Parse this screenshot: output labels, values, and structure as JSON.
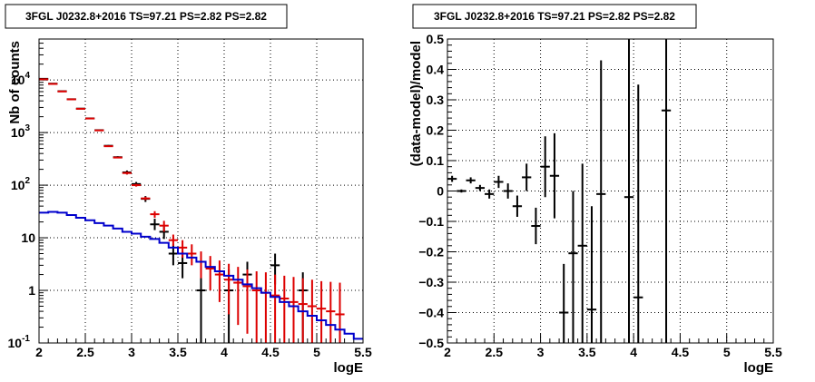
{
  "chart_data": [
    {
      "type": "scatter",
      "title": "3FGL J0232.8+2016 TS=97.21 PS=2.82 PS=2.82",
      "xlabel": "logE",
      "ylabel": "Nb of counts",
      "xlim": [
        2,
        5.5
      ],
      "ylim": [
        0.1,
        60000
      ],
      "yscale": "log",
      "grid": true,
      "x_ticks": [
        "2",
        "2.5",
        "3",
        "3.5",
        "4",
        "4.5",
        "5",
        "5.5"
      ],
      "y_ticks": [
        {
          "value": 0.1,
          "label": "10",
          "exp": "-1"
        },
        {
          "value": 1,
          "label": "1",
          "exp": ""
        },
        {
          "value": 10,
          "label": "10",
          "exp": ""
        },
        {
          "value": 100,
          "label": "10",
          "exp": "2"
        },
        {
          "value": 1000,
          "label": "10",
          "exp": "3"
        },
        {
          "value": 10000,
          "label": "10",
          "exp": "4"
        }
      ],
      "series": [
        {
          "color": "#000000",
          "style": "errorbars",
          "points": [
            {
              "x": 2.05,
              "y": 10500,
              "lo": 10400,
              "hi": 10600
            },
            {
              "x": 2.15,
              "y": 8500,
              "lo": 8400,
              "hi": 8600
            },
            {
              "x": 2.25,
              "y": 6100,
              "lo": 6000,
              "hi": 6200
            },
            {
              "x": 2.35,
              "y": 4300,
              "lo": 4250,
              "hi": 4350
            },
            {
              "x": 2.45,
              "y": 2850,
              "lo": 2800,
              "hi": 2900
            },
            {
              "x": 2.55,
              "y": 1860,
              "lo": 1820,
              "hi": 1900
            },
            {
              "x": 2.65,
              "y": 1110,
              "lo": 1080,
              "hi": 1140
            },
            {
              "x": 2.75,
              "y": 560,
              "lo": 540,
              "hi": 580
            },
            {
              "x": 2.85,
              "y": 340,
              "lo": 325,
              "hi": 355
            },
            {
              "x": 2.95,
              "y": 175,
              "lo": 160,
              "hi": 190
            },
            {
              "x": 3.05,
              "y": 105,
              "lo": 95,
              "hi": 115
            },
            {
              "x": 3.15,
              "y": 55,
              "lo": 48,
              "hi": 62
            },
            {
              "x": 3.25,
              "y": 18,
              "lo": 14,
              "hi": 23
            },
            {
              "x": 3.35,
              "y": 13,
              "lo": 9.5,
              "hi": 17
            },
            {
              "x": 3.45,
              "y": 5,
              "lo": 3,
              "hi": 7.5
            },
            {
              "x": 3.55,
              "y": 3.3,
              "lo": 1.7,
              "hi": 5.5
            },
            {
              "x": 3.75,
              "y": 1,
              "lo": 0.1,
              "hi": 2.5
            },
            {
              "x": 4.05,
              "y": 1,
              "lo": 0.1,
              "hi": 2.5
            },
            {
              "x": 4.25,
              "y": 2,
              "lo": 0.7,
              "hi": 3.5
            },
            {
              "x": 4.55,
              "y": 3,
              "lo": 1.3,
              "hi": 5
            },
            {
              "x": 4.85,
              "y": 1,
              "lo": 0.1,
              "hi": 2.2
            }
          ]
        },
        {
          "color": "#dd0000",
          "style": "errorbars",
          "points": [
            {
              "x": 2.05,
              "y": 10300,
              "lo": 10250,
              "hi": 10350
            },
            {
              "x": 2.15,
              "y": 8400,
              "lo": 8350,
              "hi": 8450
            },
            {
              "x": 2.25,
              "y": 6050,
              "lo": 6000,
              "hi": 6100
            },
            {
              "x": 2.35,
              "y": 4280,
              "lo": 4250,
              "hi": 4310
            },
            {
              "x": 2.45,
              "y": 2830,
              "lo": 2800,
              "hi": 2860
            },
            {
              "x": 2.55,
              "y": 1850,
              "lo": 1830,
              "hi": 1870
            },
            {
              "x": 2.65,
              "y": 1100,
              "lo": 1085,
              "hi": 1115
            },
            {
              "x": 2.75,
              "y": 550,
              "lo": 540,
              "hi": 560
            },
            {
              "x": 2.85,
              "y": 335,
              "lo": 328,
              "hi": 342
            },
            {
              "x": 2.95,
              "y": 170,
              "lo": 160,
              "hi": 180
            },
            {
              "x": 3.05,
              "y": 100,
              "lo": 94,
              "hi": 106
            },
            {
              "x": 3.15,
              "y": 56,
              "lo": 52,
              "hi": 60
            },
            {
              "x": 3.25,
              "y": 28,
              "lo": 24,
              "hi": 32
            },
            {
              "x": 3.35,
              "y": 17,
              "lo": 13,
              "hi": 21
            },
            {
              "x": 3.45,
              "y": 9,
              "lo": 7,
              "hi": 11.5
            },
            {
              "x": 3.55,
              "y": 6.5,
              "lo": 4.2,
              "hi": 9
            },
            {
              "x": 3.65,
              "y": 5,
              "lo": 3,
              "hi": 7.5
            },
            {
              "x": 3.75,
              "y": 3.5,
              "lo": 1.7,
              "hi": 5.5
            },
            {
              "x": 3.85,
              "y": 2.6,
              "lo": 1,
              "hi": 4.5
            },
            {
              "x": 3.95,
              "y": 2,
              "lo": 0.6,
              "hi": 3.7
            },
            {
              "x": 4.05,
              "y": 1.6,
              "lo": 0.35,
              "hi": 3.2
            },
            {
              "x": 4.15,
              "y": 1.4,
              "lo": 0.22,
              "hi": 2.8
            },
            {
              "x": 4.25,
              "y": 1.2,
              "lo": 0.15,
              "hi": 2.5
            },
            {
              "x": 4.35,
              "y": 1,
              "lo": 0.1,
              "hi": 2.3
            },
            {
              "x": 4.45,
              "y": 0.9,
              "lo": 0.1,
              "hi": 2.2
            },
            {
              "x": 4.55,
              "y": 0.8,
              "lo": 0.1,
              "hi": 2
            },
            {
              "x": 4.65,
              "y": 0.7,
              "lo": 0.1,
              "hi": 1.9
            },
            {
              "x": 4.75,
              "y": 0.6,
              "lo": 0.1,
              "hi": 1.8
            },
            {
              "x": 4.85,
              "y": 0.55,
              "lo": 0.1,
              "hi": 1.7
            },
            {
              "x": 4.95,
              "y": 0.5,
              "lo": 0.1,
              "hi": 1.6
            },
            {
              "x": 5.05,
              "y": 0.45,
              "lo": 0.1,
              "hi": 1.5
            },
            {
              "x": 5.15,
              "y": 0.4,
              "lo": 0.1,
              "hi": 1.45
            },
            {
              "x": 5.25,
              "y": 0.35,
              "lo": 0.1,
              "hi": 1.4
            }
          ]
        },
        {
          "color": "#0000cc",
          "style": "step",
          "points": [
            {
              "x": 2.05,
              "y": 30
            },
            {
              "x": 2.15,
              "y": 31
            },
            {
              "x": 2.25,
              "y": 30
            },
            {
              "x": 2.35,
              "y": 27
            },
            {
              "x": 2.45,
              "y": 24
            },
            {
              "x": 2.55,
              "y": 21.5
            },
            {
              "x": 2.65,
              "y": 19
            },
            {
              "x": 2.75,
              "y": 17
            },
            {
              "x": 2.85,
              "y": 15
            },
            {
              "x": 2.95,
              "y": 13
            },
            {
              "x": 3.05,
              "y": 12
            },
            {
              "x": 3.15,
              "y": 10.5
            },
            {
              "x": 3.25,
              "y": 9.5
            },
            {
              "x": 3.35,
              "y": 8
            },
            {
              "x": 3.45,
              "y": 6.5
            },
            {
              "x": 3.55,
              "y": 5
            },
            {
              "x": 3.65,
              "y": 4.2
            },
            {
              "x": 3.75,
              "y": 3.5
            },
            {
              "x": 3.85,
              "y": 2.8
            },
            {
              "x": 3.95,
              "y": 2.3
            },
            {
              "x": 4.05,
              "y": 1.9
            },
            {
              "x": 4.15,
              "y": 1.6
            },
            {
              "x": 4.25,
              "y": 1.3
            },
            {
              "x": 4.35,
              "y": 1.1
            },
            {
              "x": 4.45,
              "y": 0.9
            },
            {
              "x": 4.55,
              "y": 0.75
            },
            {
              "x": 4.65,
              "y": 0.6
            },
            {
              "x": 4.75,
              "y": 0.5
            },
            {
              "x": 4.85,
              "y": 0.4
            },
            {
              "x": 4.95,
              "y": 0.33
            },
            {
              "x": 5.05,
              "y": 0.27
            },
            {
              "x": 5.15,
              "y": 0.22
            },
            {
              "x": 5.25,
              "y": 0.18
            },
            {
              "x": 5.35,
              "y": 0.15
            },
            {
              "x": 5.45,
              "y": 0.12
            }
          ]
        }
      ]
    },
    {
      "type": "scatter",
      "title": "3FGL J0232.8+2016 TS=97.21 PS=2.82 PS=2.82",
      "xlabel": "logE",
      "ylabel": "(data-model)/model",
      "xlim": [
        2,
        5.5
      ],
      "ylim": [
        -0.5,
        0.5
      ],
      "yscale": "linear",
      "grid": true,
      "x_ticks": [
        "2",
        "2.5",
        "3",
        "3.5",
        "4",
        "4.5",
        "5",
        "5.5"
      ],
      "y_ticks": [
        {
          "value": -0.5,
          "label": "−0.5"
        },
        {
          "value": -0.4,
          "label": "−0.4"
        },
        {
          "value": -0.3,
          "label": "−0.3"
        },
        {
          "value": -0.2,
          "label": "−0.2"
        },
        {
          "value": -0.1,
          "label": "−0.1"
        },
        {
          "value": 0,
          "label": "0"
        },
        {
          "value": 0.1,
          "label": "0.1"
        },
        {
          "value": 0.2,
          "label": "0.2"
        },
        {
          "value": 0.3,
          "label": "0.3"
        },
        {
          "value": 0.4,
          "label": "0.4"
        },
        {
          "value": 0.5,
          "label": "0.5"
        }
      ],
      "series": [
        {
          "color": "#000000",
          "style": "errorbars",
          "points": [
            {
              "x": 2.05,
              "y": 0.04,
              "lo": 0.03,
              "hi": 0.05
            },
            {
              "x": 2.15,
              "y": 0.0,
              "lo": -0.005,
              "hi": 0.005
            },
            {
              "x": 2.25,
              "y": 0.035,
              "lo": 0.025,
              "hi": 0.045
            },
            {
              "x": 2.35,
              "y": 0.01,
              "lo": 0.0,
              "hi": 0.02
            },
            {
              "x": 2.45,
              "y": -0.01,
              "lo": -0.025,
              "hi": 0.005
            },
            {
              "x": 2.55,
              "y": 0.03,
              "lo": 0.01,
              "hi": 0.05
            },
            {
              "x": 2.65,
              "y": 0.0,
              "lo": -0.025,
              "hi": 0.025
            },
            {
              "x": 2.75,
              "y": -0.05,
              "lo": -0.085,
              "hi": -0.015
            },
            {
              "x": 2.85,
              "y": 0.045,
              "lo": 0.0,
              "hi": 0.09
            },
            {
              "x": 2.95,
              "y": -0.115,
              "lo": -0.175,
              "hi": -0.055
            },
            {
              "x": 3.05,
              "y": 0.08,
              "lo": -0.02,
              "hi": 0.18
            },
            {
              "x": 3.15,
              "y": 0.05,
              "lo": -0.09,
              "hi": 0.19
            },
            {
              "x": 3.25,
              "y": -0.4,
              "lo": -0.5,
              "hi": -0.24
            },
            {
              "x": 3.35,
              "y": -0.205,
              "lo": -0.5,
              "hi": 0.0
            },
            {
              "x": 3.45,
              "y": -0.18,
              "lo": -0.5,
              "hi": 0.09
            },
            {
              "x": 3.55,
              "y": -0.39,
              "lo": -0.5,
              "hi": -0.05
            },
            {
              "x": 3.65,
              "y": -0.01,
              "lo": -0.5,
              "hi": 0.43
            },
            {
              "x": 3.95,
              "y": -0.02,
              "lo": -0.5,
              "hi": 0.5
            },
            {
              "x": 4.05,
              "y": -0.35,
              "lo": -0.5,
              "hi": 0.35
            },
            {
              "x": 4.35,
              "y": 0.265,
              "lo": -0.5,
              "hi": 0.5
            }
          ]
        }
      ]
    }
  ]
}
